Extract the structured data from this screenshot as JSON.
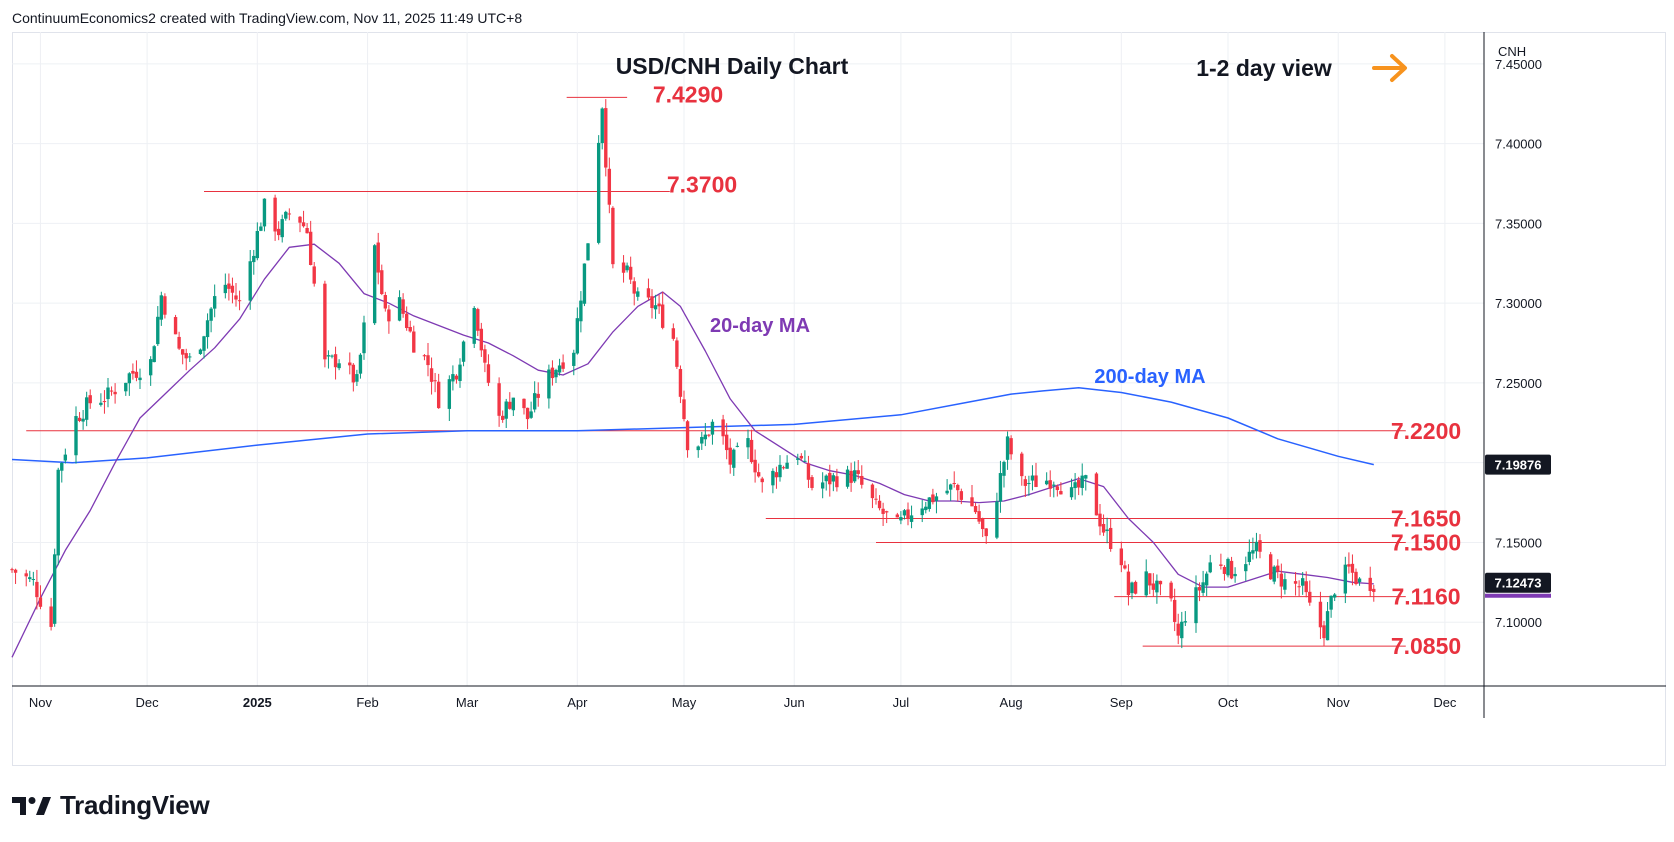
{
  "attribution": "ContinuumEconomics2 created with TradingView.com, Nov 11, 2025 11:49 UTC+8",
  "brand": "TradingView",
  "chart_data": {
    "type": "candlestick",
    "title": "USD/CNH Daily Chart",
    "view_label": "1-2 day view",
    "view_arrow": "right",
    "currency": "CNH",
    "current_price": "7.12473",
    "ma200_tag": "7.19876",
    "ylim": [
      7.06,
      7.47
    ],
    "yticks": [
      "7.45000",
      "7.40000",
      "7.35000",
      "7.30000",
      "7.25000",
      "7.20000",
      "7.15000",
      "7.10000"
    ],
    "ytick_values": [
      7.45,
      7.4,
      7.35,
      7.3,
      7.25,
      7.2,
      7.15,
      7.1
    ],
    "x_start": "2024-10-24",
    "x_end": "2025-12-12",
    "xticks": [
      {
        "label": "Nov",
        "date": "2024-11-01",
        "bold": false
      },
      {
        "label": "Dec",
        "date": "2024-12-01",
        "bold": false
      },
      {
        "label": "2025",
        "date": "2025-01-01",
        "bold": true
      },
      {
        "label": "Feb",
        "date": "2025-02-01",
        "bold": false
      },
      {
        "label": "Mar",
        "date": "2025-03-01",
        "bold": false
      },
      {
        "label": "Apr",
        "date": "2025-04-01",
        "bold": false
      },
      {
        "label": "May",
        "date": "2025-05-01",
        "bold": false
      },
      {
        "label": "Jun",
        "date": "2025-06-01",
        "bold": false
      },
      {
        "label": "Jul",
        "date": "2025-07-01",
        "bold": false
      },
      {
        "label": "Aug",
        "date": "2025-08-01",
        "bold": false
      },
      {
        "label": "Sep",
        "date": "2025-09-01",
        "bold": false
      },
      {
        "label": "Oct",
        "date": "2025-10-01",
        "bold": false
      },
      {
        "label": "Nov",
        "date": "2025-11-01",
        "bold": false
      },
      {
        "label": "Dec",
        "date": "2025-12-01",
        "bold": false
      }
    ],
    "grid": true,
    "price_path": [
      [
        "2024-10-24",
        7.133
      ],
      [
        "2024-10-30",
        7.125
      ],
      [
        "2024-11-04",
        7.098
      ],
      [
        "2024-11-06",
        7.195
      ],
      [
        "2024-11-11",
        7.228
      ],
      [
        "2024-11-15",
        7.238
      ],
      [
        "2024-11-20",
        7.242
      ],
      [
        "2024-11-26",
        7.255
      ],
      [
        "2024-12-02",
        7.263
      ],
      [
        "2024-12-05",
        7.305
      ],
      [
        "2024-12-10",
        7.27
      ],
      [
        "2024-12-14",
        7.262
      ],
      [
        "2024-12-18",
        7.29
      ],
      [
        "2024-12-22",
        7.315
      ],
      [
        "2024-12-27",
        7.3
      ],
      [
        "2024-12-31",
        7.335
      ],
      [
        "2025-01-03",
        7.36
      ],
      [
        "2025-01-07",
        7.345
      ],
      [
        "2025-01-11",
        7.36
      ],
      [
        "2025-01-15",
        7.345
      ],
      [
        "2025-01-20",
        7.262
      ],
      [
        "2025-01-24",
        7.265
      ],
      [
        "2025-01-29",
        7.25
      ],
      [
        "2025-02-03",
        7.335
      ],
      [
        "2025-02-06",
        7.292
      ],
      [
        "2025-02-10",
        7.3
      ],
      [
        "2025-02-14",
        7.275
      ],
      [
        "2025-02-18",
        7.262
      ],
      [
        "2025-02-21",
        7.24
      ],
      [
        "2025-02-26",
        7.258
      ],
      [
        "2025-03-03",
        7.302
      ],
      [
        "2025-03-06",
        7.258
      ],
      [
        "2025-03-10",
        7.228
      ],
      [
        "2025-03-14",
        7.242
      ],
      [
        "2025-03-18",
        7.228
      ],
      [
        "2025-03-22",
        7.248
      ],
      [
        "2025-03-26",
        7.26
      ],
      [
        "2025-03-31",
        7.272
      ],
      [
        "2025-04-04",
        7.34
      ],
      [
        "2025-04-08",
        7.425
      ],
      [
        "2025-04-11",
        7.322
      ],
      [
        "2025-04-15",
        7.318
      ],
      [
        "2025-04-18",
        7.302
      ],
      [
        "2025-04-23",
        7.298
      ],
      [
        "2025-04-28",
        7.278
      ],
      [
        "2025-05-02",
        7.213
      ],
      [
        "2025-05-06",
        7.212
      ],
      [
        "2025-05-10",
        7.228
      ],
      [
        "2025-05-14",
        7.2
      ],
      [
        "2025-05-19",
        7.212
      ],
      [
        "2025-05-23",
        7.185
      ],
      [
        "2025-05-28",
        7.198
      ],
      [
        "2025-06-02",
        7.206
      ],
      [
        "2025-06-06",
        7.185
      ],
      [
        "2025-06-12",
        7.19
      ],
      [
        "2025-06-18",
        7.192
      ],
      [
        "2025-06-24",
        7.172
      ],
      [
        "2025-06-30",
        7.16
      ],
      [
        "2025-07-05",
        7.172
      ],
      [
        "2025-07-10",
        7.178
      ],
      [
        "2025-07-16",
        7.185
      ],
      [
        "2025-07-22",
        7.17
      ],
      [
        "2025-07-25",
        7.15
      ],
      [
        "2025-07-28",
        7.18
      ],
      [
        "2025-07-31",
        7.212
      ],
      [
        "2025-08-04",
        7.187
      ],
      [
        "2025-08-08",
        7.188
      ],
      [
        "2025-08-13",
        7.19
      ],
      [
        "2025-08-18",
        7.18
      ],
      [
        "2025-08-22",
        7.188
      ],
      [
        "2025-08-27",
        7.158
      ],
      [
        "2025-09-01",
        7.14
      ],
      [
        "2025-09-03",
        7.118
      ],
      [
        "2025-09-08",
        7.128
      ],
      [
        "2025-09-12",
        7.118
      ],
      [
        "2025-09-15",
        7.11
      ],
      [
        "2025-09-17",
        7.09
      ],
      [
        "2025-09-19",
        7.105
      ],
      [
        "2025-09-24",
        7.125
      ],
      [
        "2025-09-27",
        7.142
      ],
      [
        "2025-10-02",
        7.132
      ],
      [
        "2025-10-06",
        7.14
      ],
      [
        "2025-10-09",
        7.145
      ],
      [
        "2025-10-13",
        7.132
      ],
      [
        "2025-10-17",
        7.125
      ],
      [
        "2025-10-22",
        7.122
      ],
      [
        "2025-10-25",
        7.102
      ],
      [
        "2025-10-28",
        7.095
      ],
      [
        "2025-10-31",
        7.122
      ],
      [
        "2025-11-04",
        7.133
      ],
      [
        "2025-11-07",
        7.125
      ],
      [
        "2025-11-11",
        7.1247
      ]
    ],
    "ma20": [
      [
        "2024-10-24",
        7.078
      ],
      [
        "2024-11-01",
        7.115
      ],
      [
        "2024-11-08",
        7.145
      ],
      [
        "2024-11-15",
        7.17
      ],
      [
        "2024-11-22",
        7.2
      ],
      [
        "2024-11-29",
        7.228
      ],
      [
        "2024-12-06",
        7.243
      ],
      [
        "2024-12-13",
        7.258
      ],
      [
        "2024-12-20",
        7.272
      ],
      [
        "2024-12-27",
        7.29
      ],
      [
        "2025-01-03",
        7.315
      ],
      [
        "2025-01-10",
        7.335
      ],
      [
        "2025-01-17",
        7.337
      ],
      [
        "2025-01-24",
        7.325
      ],
      [
        "2025-01-31",
        7.306
      ],
      [
        "2025-02-07",
        7.3
      ],
      [
        "2025-02-14",
        7.292
      ],
      [
        "2025-02-21",
        7.286
      ],
      [
        "2025-02-28",
        7.28
      ],
      [
        "2025-03-07",
        7.275
      ],
      [
        "2025-03-14",
        7.267
      ],
      [
        "2025-03-21",
        7.258
      ],
      [
        "2025-03-28",
        7.255
      ],
      [
        "2025-04-04",
        7.262
      ],
      [
        "2025-04-11",
        7.282
      ],
      [
        "2025-04-18",
        7.298
      ],
      [
        "2025-04-25",
        7.307
      ],
      [
        "2025-04-30",
        7.298
      ],
      [
        "2025-05-07",
        7.27
      ],
      [
        "2025-05-14",
        7.24
      ],
      [
        "2025-05-21",
        7.22
      ],
      [
        "2025-05-28",
        7.21
      ],
      [
        "2025-06-04",
        7.2
      ],
      [
        "2025-06-11",
        7.195
      ],
      [
        "2025-06-18",
        7.192
      ],
      [
        "2025-06-25",
        7.187
      ],
      [
        "2025-07-02",
        7.18
      ],
      [
        "2025-07-09",
        7.176
      ],
      [
        "2025-07-16",
        7.176
      ],
      [
        "2025-07-23",
        7.175
      ],
      [
        "2025-07-30",
        7.176
      ],
      [
        "2025-08-06",
        7.18
      ],
      [
        "2025-08-13",
        7.185
      ],
      [
        "2025-08-20",
        7.19
      ],
      [
        "2025-08-27",
        7.185
      ],
      [
        "2025-09-03",
        7.165
      ],
      [
        "2025-09-10",
        7.15
      ],
      [
        "2025-09-17",
        7.13
      ],
      [
        "2025-09-24",
        7.122
      ],
      [
        "2025-10-01",
        7.122
      ],
      [
        "2025-10-08",
        7.127
      ],
      [
        "2025-10-15",
        7.132
      ],
      [
        "2025-10-22",
        7.13
      ],
      [
        "2025-10-29",
        7.128
      ],
      [
        "2025-11-05",
        7.125
      ],
      [
        "2025-11-11",
        7.124
      ]
    ],
    "ma200": [
      [
        "2024-10-24",
        7.202
      ],
      [
        "2024-11-10",
        7.2
      ],
      [
        "2024-12-01",
        7.203
      ],
      [
        "2025-01-01",
        7.211
      ],
      [
        "2025-02-01",
        7.218
      ],
      [
        "2025-03-01",
        7.22
      ],
      [
        "2025-04-01",
        7.22
      ],
      [
        "2025-05-01",
        7.222
      ],
      [
        "2025-06-01",
        7.224
      ],
      [
        "2025-07-01",
        7.23
      ],
      [
        "2025-07-20",
        7.238
      ],
      [
        "2025-08-01",
        7.243
      ],
      [
        "2025-08-10",
        7.245
      ],
      [
        "2025-08-20",
        7.247
      ],
      [
        "2025-09-01",
        7.244
      ],
      [
        "2025-09-15",
        7.238
      ],
      [
        "2025-10-01",
        7.228
      ],
      [
        "2025-10-15",
        7.215
      ],
      [
        "2025-11-01",
        7.204
      ],
      [
        "2025-11-11",
        7.1988
      ]
    ],
    "annotations": {
      "ma20_label": "20-day MA",
      "ma200_label": "200-day MA"
    },
    "levels": [
      {
        "label": "7.4290",
        "price": 7.429,
        "x_from": "2025-03-29",
        "x_to": "2025-04-15"
      },
      {
        "label": "7.3700",
        "price": 7.37,
        "x_from": "2024-12-17",
        "x_to": "2025-04-27"
      },
      {
        "label": "7.2200",
        "price": 7.22,
        "x_from": "2024-10-28",
        "x_to": "2025-11-20"
      },
      {
        "label": "7.1650",
        "price": 7.165,
        "x_from": "2025-05-24",
        "x_to": "2025-11-20"
      },
      {
        "label": "7.1500",
        "price": 7.15,
        "x_from": "2025-06-24",
        "x_to": "2025-11-20"
      },
      {
        "label": "7.1160",
        "price": 7.116,
        "x_from": "2025-08-30",
        "x_to": "2025-11-20"
      },
      {
        "label": "7.0850",
        "price": 7.085,
        "x_from": "2025-09-07",
        "x_to": "2025-11-20"
      }
    ],
    "colors": {
      "up": "#089981",
      "down": "#f23645",
      "level": "#e8323f",
      "level_text": "#e8323f",
      "ma20": "#7e3ab3",
      "ma200": "#2962ff",
      "arrow": "#f7931e",
      "price_tag": "#131722",
      "grid": "#eef0f4"
    }
  }
}
